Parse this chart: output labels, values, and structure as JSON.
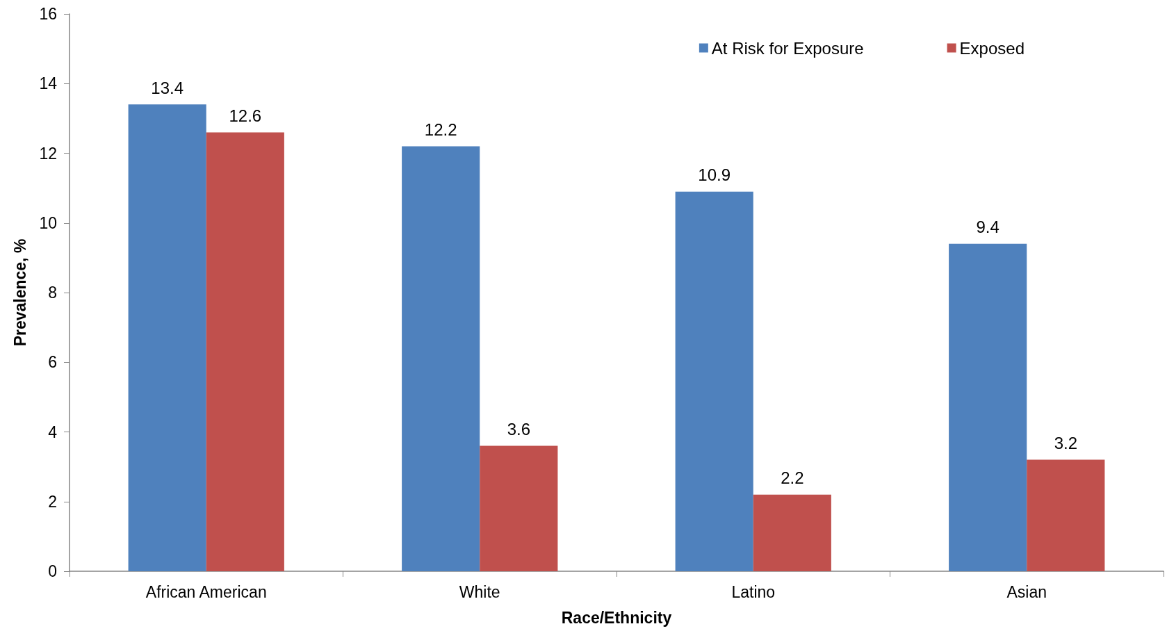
{
  "chart_data": {
    "type": "bar",
    "xlabel": "Race/Ethnicity",
    "ylabel": "Prevalence, %",
    "categories": [
      "African American",
      "White",
      "Latino",
      "Asian"
    ],
    "series": [
      {
        "name": "At Risk for Exposure",
        "color": "#4f81bd",
        "values": [
          13.4,
          12.2,
          10.9,
          9.4
        ]
      },
      {
        "name": "Exposed",
        "color": "#c0504d",
        "values": [
          12.6,
          3.6,
          2.2,
          3.2
        ]
      }
    ],
    "ylim": [
      0,
      16
    ],
    "yticks": [
      0,
      2,
      4,
      6,
      8,
      10,
      12,
      14,
      16
    ],
    "grid": false,
    "legend": "top right",
    "data_labels": true
  }
}
